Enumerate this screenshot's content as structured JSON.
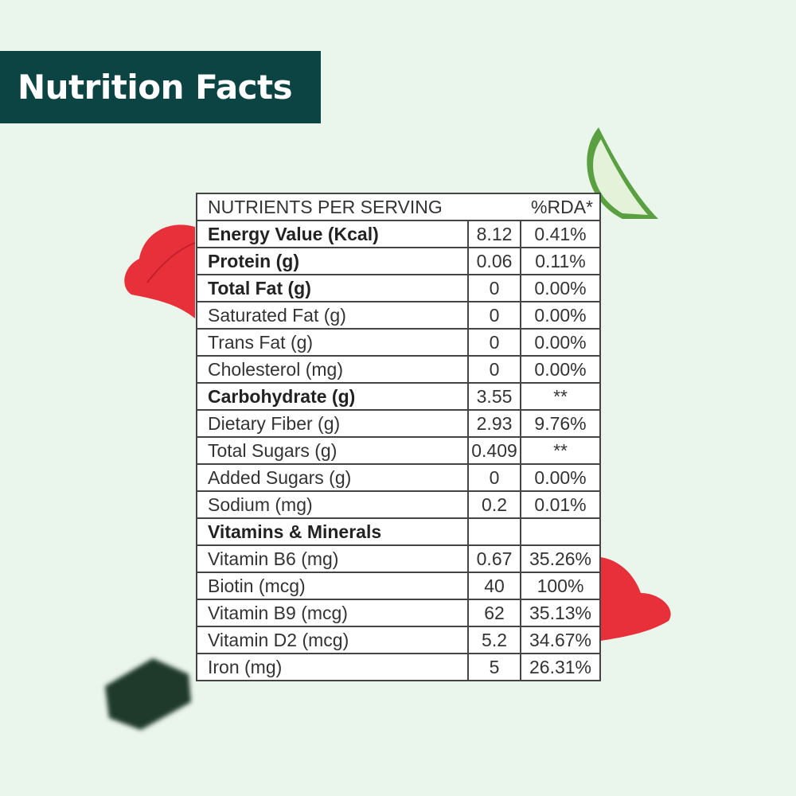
{
  "title": "Nutrition Facts",
  "table": {
    "header": {
      "label": "NUTRIENTS PER SERVING",
      "rda": "%RDA*"
    },
    "rows": [
      {
        "name": "Energy Value (Kcal)",
        "value": "8.12",
        "rda": "0.41%",
        "bold": true
      },
      {
        "name": "Protein (g)",
        "value": "0.06",
        "rda": "0.11%",
        "bold": true
      },
      {
        "name": "Total Fat (g)",
        "value": "0",
        "rda": "0.00%",
        "bold": true
      },
      {
        "name": "Saturated Fat (g)",
        "value": "0",
        "rda": "0.00%"
      },
      {
        "name": "Trans Fat (g)",
        "value": "0",
        "rda": "0.00%"
      },
      {
        "name": "Cholesterol (mg)",
        "value": "0",
        "rda": "0.00%"
      },
      {
        "name": "Carbohydrate (g)",
        "value": "3.55",
        "rda": "**",
        "bold": true
      },
      {
        "name": "Dietary Fiber (g)",
        "value": "2.93",
        "rda": "9.76%"
      },
      {
        "name": "Total Sugars (g)",
        "value": "0.409",
        "rda": "**"
      },
      {
        "name": "Added Sugars (g)",
        "value": "0",
        "rda": "0.00%"
      },
      {
        "name": "Sodium (mg)",
        "value": "0.2",
        "rda": "0.01%"
      },
      {
        "name": "Vitamins & Minerals",
        "value": "",
        "rda": "",
        "bold": true
      },
      {
        "name": "Vitamin B6 (mg)",
        "value": "0.67",
        "rda": "35.26%"
      },
      {
        "name": "Biotin (mcg)",
        "value": "40",
        "rda": "100%"
      },
      {
        "name": "Vitamin B9 (mcg)",
        "value": "62",
        "rda": "35.13%"
      },
      {
        "name": "Vitamin D2 (mcg)",
        "value": "5.2",
        "rda": "34.67%"
      },
      {
        "name": "Iron (mg)",
        "value": "5",
        "rda": "26.31%"
      }
    ]
  },
  "colors": {
    "background": "#eaf5ec",
    "banner": "#0c4444",
    "petal": "#e8303a",
    "aloe": "#5aa040",
    "gummy": "#1f3a2a"
  }
}
